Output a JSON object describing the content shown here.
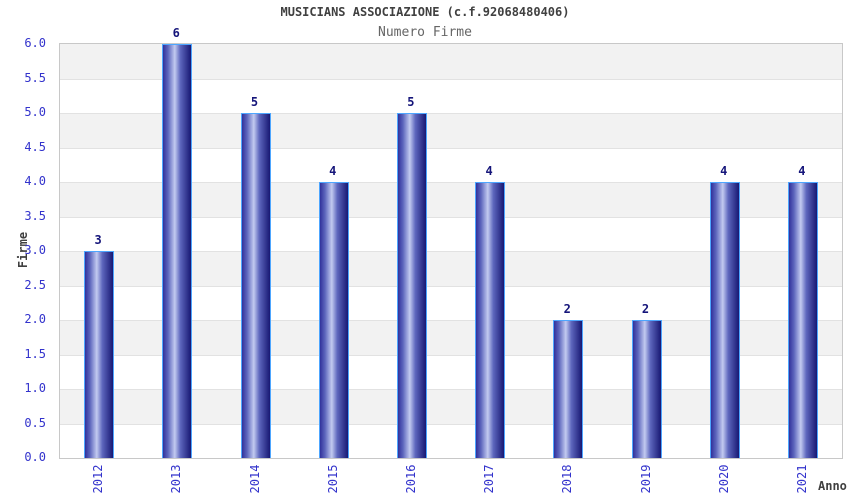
{
  "chart_data": {
    "type": "bar",
    "title": "MUSICIANS ASSOCIAZIONE (c.f.92068480406)",
    "subtitle": "Numero Firme",
    "xlabel": "Anno",
    "ylabel": "Firme",
    "categories": [
      "2012",
      "2013",
      "2014",
      "2015",
      "2016",
      "2017",
      "2018",
      "2019",
      "2020",
      "2021"
    ],
    "values": [
      3,
      6,
      5,
      4,
      5,
      4,
      2,
      2,
      4,
      4
    ],
    "ylim": [
      0,
      6
    ],
    "ytick_step": 0.5,
    "yticks": [
      "0.0",
      "0.5",
      "1.0",
      "1.5",
      "2.0",
      "2.5",
      "3.0",
      "3.5",
      "4.0",
      "4.5",
      "5.0",
      "5.5",
      "6.0"
    ],
    "legend": "none",
    "grid": "alternating horizontal bands every 0.5",
    "colors": {
      "bar_dark_left": "#31319b",
      "bar_mid": "#5d66bd",
      "bar_light": "#c2caf0",
      "bar_dark_right": "#181873",
      "bar_border": "#4da6ff",
      "value_label": "#15157a",
      "tick_label": "#3333cc",
      "band_gray": "#f2f2f2",
      "band_white": "#ffffff",
      "plot_border": "#c8c8c8",
      "gridline": "#e2e2e2",
      "title": "#404040",
      "subtitle": "#666666",
      "axis_label": "#404040"
    }
  }
}
